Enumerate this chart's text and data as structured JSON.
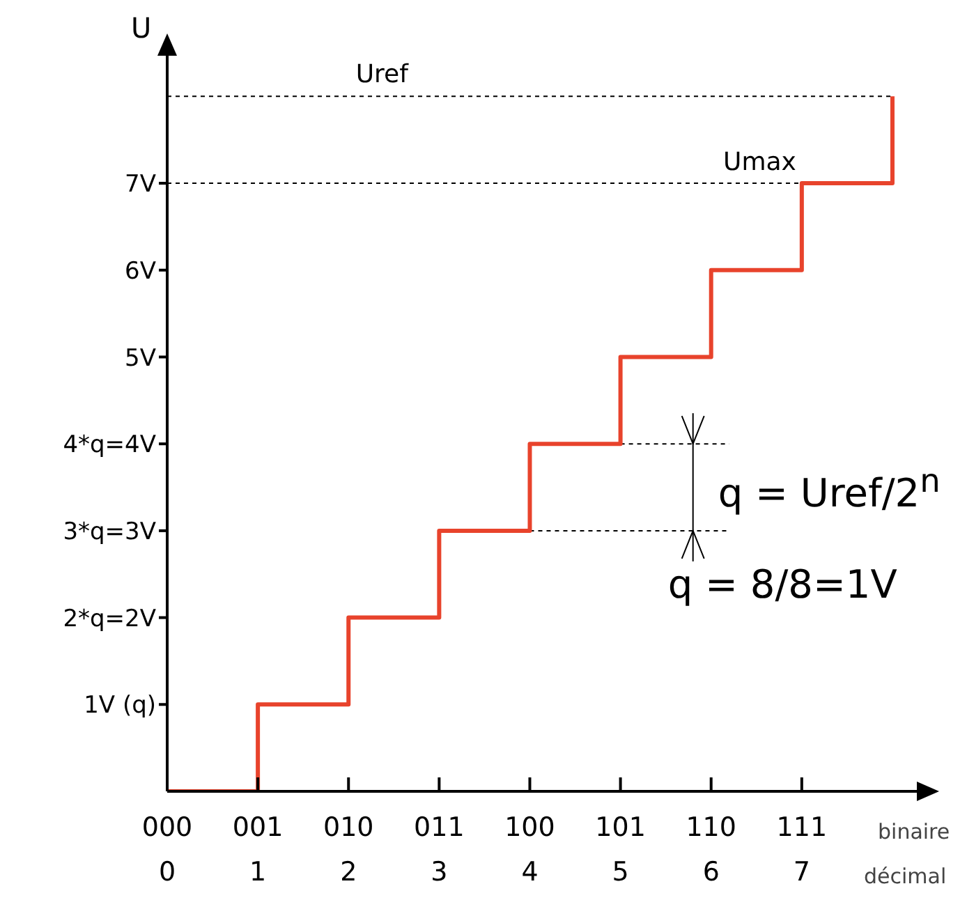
{
  "chart_data": {
    "type": "step",
    "ylabel": "U",
    "categories": [
      "000\n0",
      "001\n1",
      "010\n2",
      "011\n3",
      "100\n4",
      "101\n5",
      "110\n6",
      "111\n7",
      null
    ],
    "series": [
      {
        "color": "#e8432c",
        "values": [
          0,
          1,
          2,
          3,
          4,
          5,
          6,
          7,
          8
        ]
      }
    ],
    "ylim": [
      0,
      8.5
    ],
    "yticks": [
      {
        "value": 1,
        "label": "1V (q)"
      },
      {
        "value": 2,
        "label": "2*q=2V"
      },
      {
        "value": 3,
        "label": "3*q=3V"
      },
      {
        "value": 4,
        "label": "4*q=4V"
      },
      {
        "value": 5,
        "label": "5V"
      },
      {
        "value": 6,
        "label": "6V"
      },
      {
        "value": 7,
        "label": "7V"
      }
    ],
    "ref_lines": [
      {
        "axis": "y",
        "value": 8,
        "label": "Uref",
        "line_style": "dotted",
        "color": "#000000"
      },
      {
        "axis": "y",
        "value": 7,
        "label": "Umax",
        "line_style": "dotted",
        "color": "#000000"
      },
      {
        "axis": "y",
        "value": 4,
        "line_style": "dotted",
        "color": "#000000"
      },
      {
        "axis": "y",
        "value": 3,
        "line_style": "dotted",
        "color": "#000000"
      }
    ],
    "annotations": [
      "binaire",
      "décimal",
      "q = Uref/2$^{n}$",
      "q = 8/8=1V"
    ],
    "marker": "none",
    "line_style": "solid"
  }
}
